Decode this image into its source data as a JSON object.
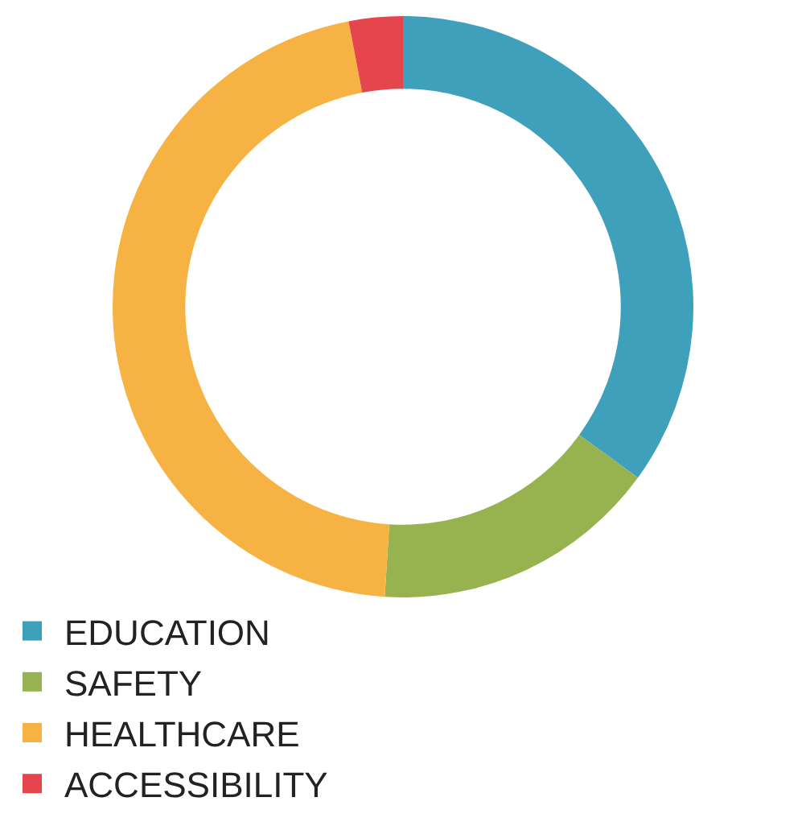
{
  "chart_data": {
    "type": "donut",
    "categories": [
      "EDUCATION",
      "SAFETY",
      "HEALTHCARE",
      "ACCESSIBILITY"
    ],
    "values": [
      35,
      16,
      46,
      3
    ],
    "colors": [
      "#3fa0bb",
      "#97b34f",
      "#f6b242",
      "#e5464e"
    ],
    "legend": "bottom"
  }
}
